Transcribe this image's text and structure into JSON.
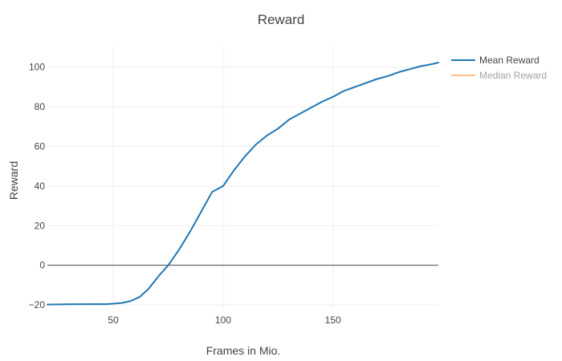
{
  "chart_data": {
    "type": "line",
    "title": "Reward",
    "xlabel": "Frames in Mio.",
    "ylabel": "Reward",
    "xlim": [
      20,
      198
    ],
    "ylim": [
      -22,
      110
    ],
    "x_ticks": [
      50,
      100,
      150
    ],
    "y_ticks": [
      -20,
      0,
      20,
      40,
      60,
      80,
      100
    ],
    "grid": true,
    "legend_position": "top-right",
    "series": [
      {
        "name": "Mean Reward",
        "color": "#1f77b4",
        "visible": true,
        "points": [
          [
            20,
            -19.8
          ],
          [
            30,
            -19.7
          ],
          [
            40,
            -19.6
          ],
          [
            47,
            -19.6
          ],
          [
            54,
            -19.0
          ],
          [
            58,
            -18.0
          ],
          [
            62,
            -16.0
          ],
          [
            66,
            -12.0
          ],
          [
            71,
            -5.0
          ],
          [
            75,
            0.0
          ],
          [
            80,
            8.0
          ],
          [
            85,
            17.0
          ],
          [
            90,
            27.0
          ],
          [
            95,
            37.0
          ],
          [
            100,
            40.0
          ],
          [
            105,
            48.0
          ],
          [
            110,
            55.0
          ],
          [
            115,
            61.0
          ],
          [
            120,
            65.5
          ],
          [
            125,
            69.0
          ],
          [
            130,
            73.5
          ],
          [
            135,
            76.5
          ],
          [
            140,
            79.5
          ],
          [
            145,
            82.5
          ],
          [
            150,
            85.0
          ],
          [
            155,
            88.0
          ],
          [
            160,
            90.0
          ],
          [
            165,
            92.0
          ],
          [
            170,
            94.0
          ],
          [
            175,
            95.5
          ],
          [
            180,
            97.5
          ],
          [
            185,
            99.0
          ],
          [
            190,
            100.5
          ],
          [
            195,
            101.5
          ],
          [
            198,
            102.3
          ]
        ]
      },
      {
        "name": "Median Reward",
        "color": "#ff7f0e",
        "visible": false,
        "points": []
      }
    ]
  }
}
